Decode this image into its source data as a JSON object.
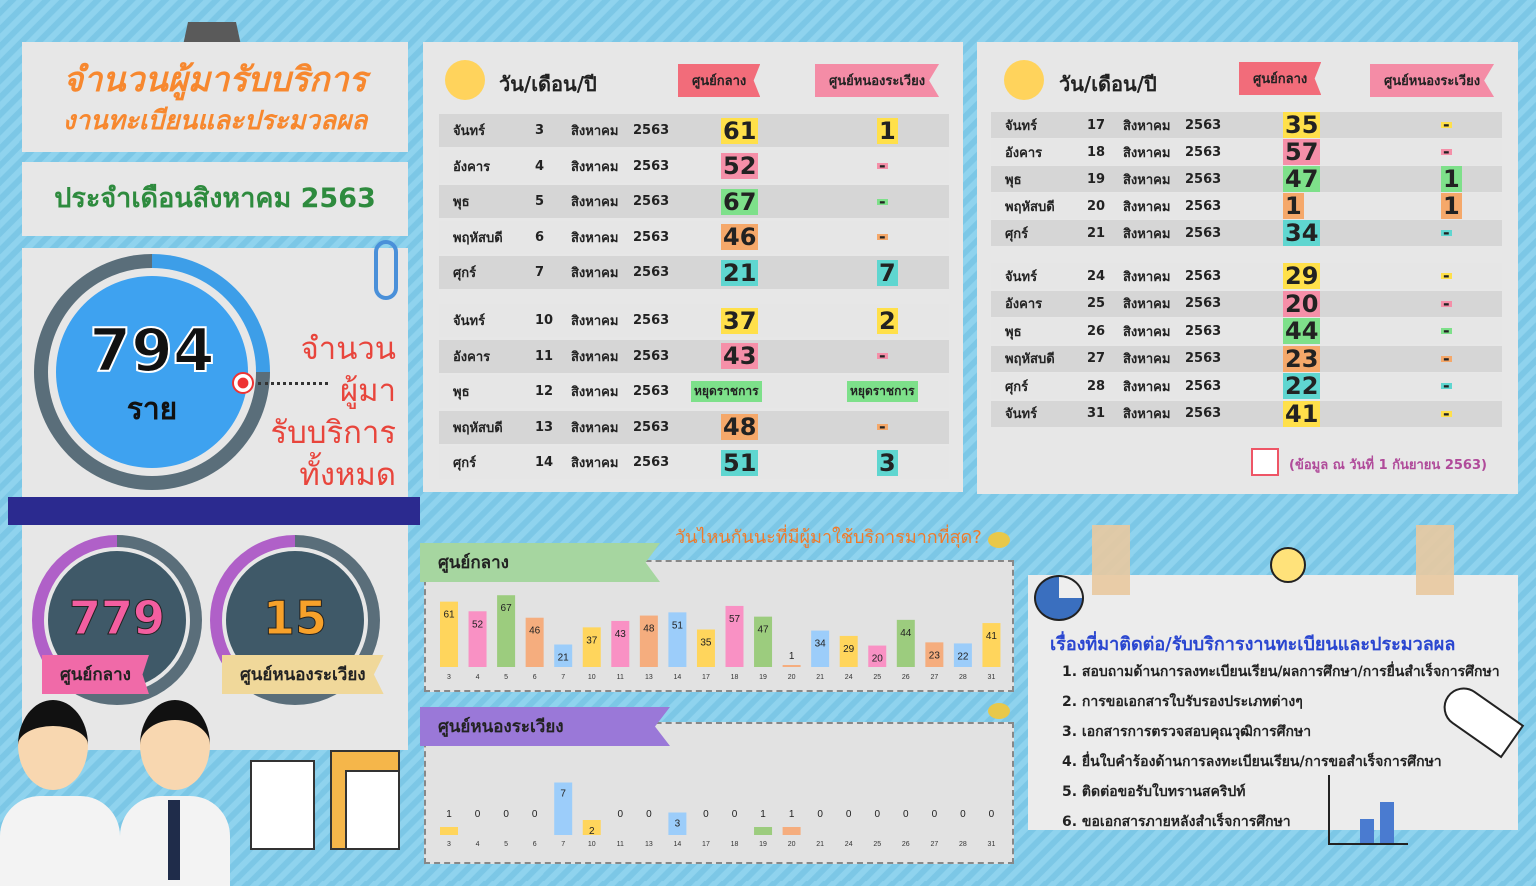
{
  "title": {
    "line1": "จำนวนผู้มารับบริการ",
    "line2": "งานทะเบียนและประมวลผล",
    "month": "ประจำเดือนสิงหาคม 2563"
  },
  "total": {
    "value": "794",
    "unit": "ราย",
    "label_lines": [
      "จำนวน",
      "ผู้มา",
      "รับบริการ",
      "ทั้งหมด"
    ]
  },
  "centers": [
    {
      "value": "779",
      "label": "ศูนย์กลาง"
    },
    {
      "value": "15",
      "label": "ศูนย์หนองระเวียง"
    }
  ],
  "table_header": {
    "date": "วัน/เดือน/ปี",
    "central": "ศูนย์กลาง",
    "branch": "ศูนย์หนองระเวียง"
  },
  "highlight_colors": [
    "#ffe04a",
    "#f58fa8",
    "#7ee08a",
    "#f5a86a",
    "#5fd6d0"
  ],
  "table1": [
    {
      "day": "จันทร์",
      "date": "3",
      "month": "สิงหาคม",
      "year": "2563",
      "central": "61",
      "branch": "1"
    },
    {
      "day": "อังคาร",
      "date": "4",
      "month": "สิงหาคม",
      "year": "2563",
      "central": "52",
      "branch": "-"
    },
    {
      "day": "พุธ",
      "date": "5",
      "month": "สิงหาคม",
      "year": "2563",
      "central": "67",
      "branch": "-"
    },
    {
      "day": "พฤหัสบดี",
      "date": "6",
      "month": "สิงหาคม",
      "year": "2563",
      "central": "46",
      "branch": "-"
    },
    {
      "day": "ศุกร์",
      "date": "7",
      "month": "สิงหาคม",
      "year": "2563",
      "central": "21",
      "branch": "7"
    },
    {
      "day": "จันทร์",
      "date": "10",
      "month": "สิงหาคม",
      "year": "2563",
      "central": "37",
      "branch": "2"
    },
    {
      "day": "อังคาร",
      "date": "11",
      "month": "สิงหาคม",
      "year": "2563",
      "central": "43",
      "branch": "-"
    },
    {
      "day": "พุธ",
      "date": "12",
      "month": "สิงหาคม",
      "year": "2563",
      "central": "หยุดราชการ",
      "branch": "หยุดราชการ"
    },
    {
      "day": "พฤหัสบดี",
      "date": "13",
      "month": "สิงหาคม",
      "year": "2563",
      "central": "48",
      "branch": "-"
    },
    {
      "day": "ศุกร์",
      "date": "14",
      "month": "สิงหาคม",
      "year": "2563",
      "central": "51",
      "branch": "3"
    }
  ],
  "table2": [
    {
      "day": "จันทร์",
      "date": "17",
      "month": "สิงหาคม",
      "year": "2563",
      "central": "35",
      "branch": "-"
    },
    {
      "day": "อังคาร",
      "date": "18",
      "month": "สิงหาคม",
      "year": "2563",
      "central": "57",
      "branch": "-"
    },
    {
      "day": "พุธ",
      "date": "19",
      "month": "สิงหาคม",
      "year": "2563",
      "central": "47",
      "branch": "1"
    },
    {
      "day": "พฤหัสบดี",
      "date": "20",
      "month": "สิงหาคม",
      "year": "2563",
      "central": "1",
      "branch": "1"
    },
    {
      "day": "ศุกร์",
      "date": "21",
      "month": "สิงหาคม",
      "year": "2563",
      "central": "34",
      "branch": "-"
    },
    {
      "day": "จันทร์",
      "date": "24",
      "month": "สิงหาคม",
      "year": "2563",
      "central": "29",
      "branch": "-"
    },
    {
      "day": "อังคาร",
      "date": "25",
      "month": "สิงหาคม",
      "year": "2563",
      "central": "20",
      "branch": "-"
    },
    {
      "day": "พุธ",
      "date": "26",
      "month": "สิงหาคม",
      "year": "2563",
      "central": "44",
      "branch": "-"
    },
    {
      "day": "พฤหัสบดี",
      "date": "27",
      "month": "สิงหาคม",
      "year": "2563",
      "central": "23",
      "branch": "-"
    },
    {
      "day": "ศุกร์",
      "date": "28",
      "month": "สิงหาคม",
      "year": "2563",
      "central": "22",
      "branch": "-"
    },
    {
      "day": "จันทร์",
      "date": "31",
      "month": "สิงหาคม",
      "year": "2563",
      "central": "41",
      "branch": "-"
    }
  ],
  "data_note": "(ข้อมูล ณ วันที่ 1 กันยายน 2563)",
  "chart_question": "วันไหนกันนะที่มีผู้มาใช้บริการมากที่สุด?",
  "chart_data": [
    {
      "type": "bar",
      "title": "ศูนย์กลาง",
      "categories": [
        "3",
        "4",
        "5",
        "6",
        "7",
        "10",
        "11",
        "13",
        "14",
        "17",
        "18",
        "19",
        "20",
        "21",
        "24",
        "25",
        "26",
        "27",
        "28",
        "31"
      ],
      "values": [
        61,
        52,
        67,
        46,
        21,
        37,
        43,
        48,
        51,
        35,
        57,
        47,
        1,
        34,
        29,
        20,
        44,
        23,
        22,
        41
      ],
      "colors": [
        "#ffd55c",
        "#f991c4",
        "#9ccc7e",
        "#f5ad7e",
        "#9ccdfa",
        "#ffd55c",
        "#f991c4",
        "#f5ad7e",
        "#9ccdfa",
        "#ffd55c",
        "#f991c4",
        "#9ccc7e",
        "#f5ad7e",
        "#9ccdfa",
        "#ffd55c",
        "#f991c4",
        "#9ccc7e",
        "#f5ad7e",
        "#9ccdfa",
        "#ffd55c"
      ],
      "ylim": [
        0,
        70
      ],
      "grid": false
    },
    {
      "type": "bar",
      "title": "ศูนย์หนองระเวียง",
      "categories": [
        "3",
        "4",
        "5",
        "6",
        "7",
        "10",
        "11",
        "13",
        "14",
        "17",
        "18",
        "19",
        "20",
        "21",
        "24",
        "25",
        "26",
        "27",
        "28",
        "31"
      ],
      "values": [
        1,
        0,
        0,
        0,
        7,
        2,
        0,
        0,
        3,
        0,
        0,
        1,
        1,
        0,
        0,
        0,
        0,
        0,
        0,
        0
      ],
      "colors": [
        "#ffd55c",
        "#f991c4",
        "#9ccc7e",
        "#f5ad7e",
        "#9ccdfa",
        "#ffd55c",
        "#f991c4",
        "#f5ad7e",
        "#9ccdfa",
        "#ffd55c",
        "#f991c4",
        "#9ccc7e",
        "#f5ad7e",
        "#9ccdfa",
        "#ffd55c",
        "#f991c4",
        "#9ccc7e",
        "#f5ad7e",
        "#9ccdfa",
        "#ffd55c"
      ],
      "ylim": [
        0,
        8
      ],
      "grid": false
    }
  ],
  "services": {
    "title": "เรื่องที่มาติดต่อ/รับบริการงานทะเบียนและประมวลผล",
    "items": [
      "1.  สอบถามด้านการลงทะเบียนเรียน/ผลการศึกษา/การยื่นสำเร็จการศึกษา",
      "2.  การขอเอกสารใบรับรองประเภทต่างๆ",
      "3.  เอกสารการตรวจสอบคุณวุฒิการศึกษา",
      "4.  ยื่นใบคำร้องด้านการลงทะเบียนเรียน/การขอสำเร็จการศึกษา",
      "5.  ติดต่อขอรับใบทรานสคริปท์",
      "6.  ขอเอกสารภายหลังสำเร็จการศึกษา"
    ]
  }
}
